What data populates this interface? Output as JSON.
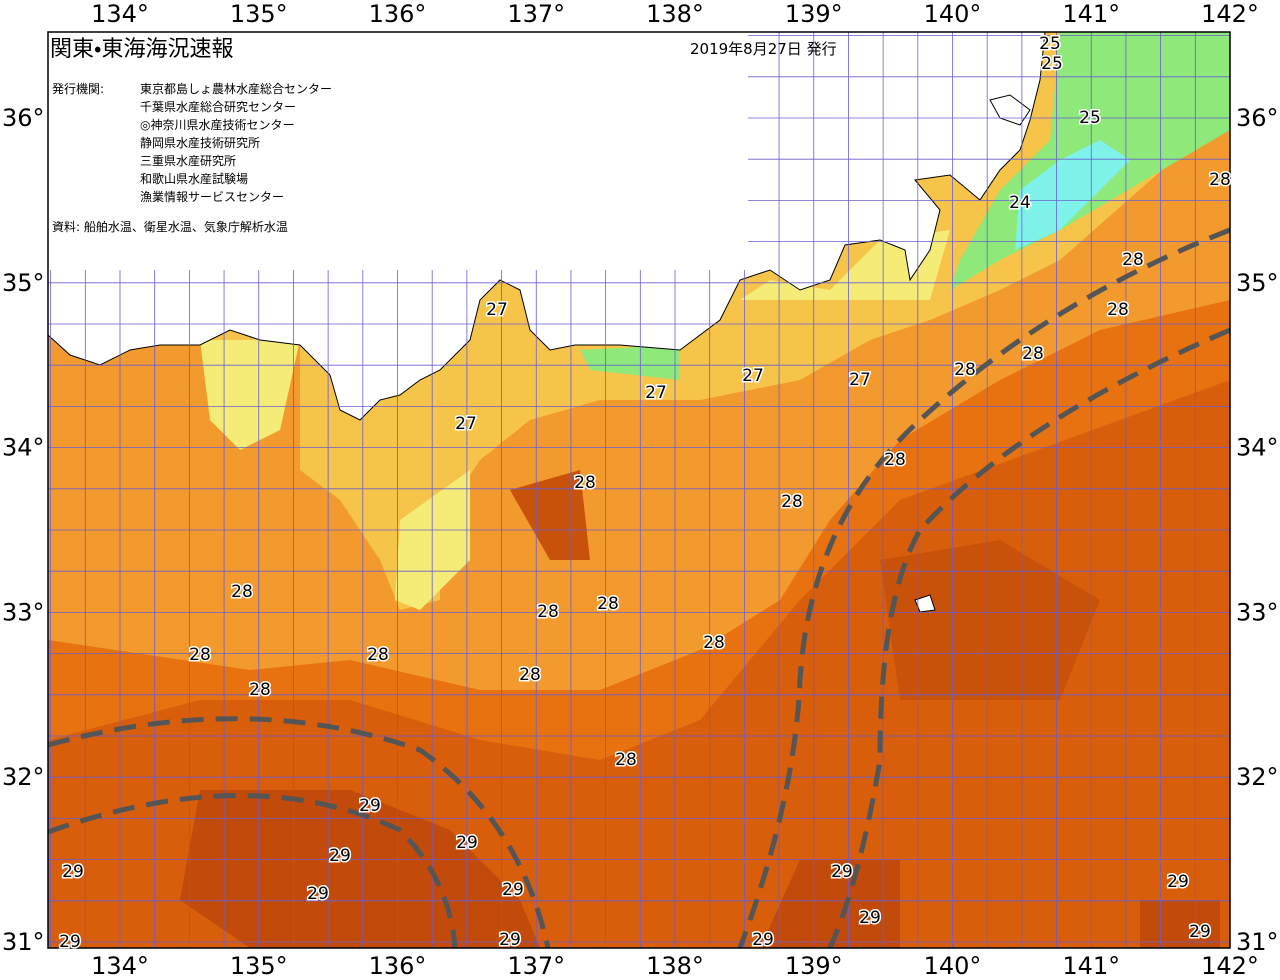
{
  "header": {
    "title": "関東・東海海況速報",
    "date": "2019年8月27日 発行"
  },
  "agencies": {
    "label": "発行機関:",
    "names": [
      "東京都島しょ農林水産総合センター",
      "千葉県水産総合研究センター",
      "◎神奈川県水産技術センター",
      "静岡県水産技術研究所",
      "三重県水産研究所",
      "和歌山県水産試験場",
      "漁業情報サービスセンター"
    ]
  },
  "source": "資料: 船舶水温、衛星水温、気象庁解析水温",
  "lon_labels": [
    "134°",
    "135°",
    "136°",
    "137°",
    "138°",
    "139°",
    "140°",
    "141°",
    "142°"
  ],
  "lat_labels": [
    "36°",
    "35°",
    "34°",
    "33°",
    "32°",
    "31°"
  ],
  "isotherm_labels": [
    25,
    25,
    25,
    24,
    28,
    28,
    28,
    28,
    28,
    27,
    27,
    27,
    27,
    27,
    28,
    28,
    28,
    28,
    28,
    28,
    28,
    28,
    28,
    28,
    28,
    28,
    29,
    29,
    29,
    29,
    29,
    29,
    29,
    29,
    29,
    29,
    29,
    29,
    29
  ]
}
